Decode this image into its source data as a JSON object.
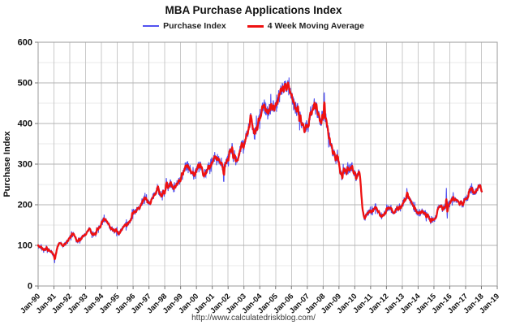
{
  "page": {
    "title": "MBA Purchase Applications Index",
    "footer_url": "http://www.calculatedriskblog.com/"
  },
  "legend": [
    {
      "label": "Purchase Index",
      "color": "#5252f0"
    },
    {
      "label": "4 Week Moving Average",
      "color": "#ee1111"
    }
  ],
  "chart_data": {
    "type": "line",
    "title": "MBA Purchase Applications Index",
    "xlabel": "",
    "ylabel": "Purchase Index",
    "xlim": [
      1990,
      2019
    ],
    "ylim": [
      0,
      600
    ],
    "y_major_ticks": [
      0,
      100,
      200,
      300,
      400,
      500,
      600
    ],
    "y_minor_step": 50,
    "grid": true,
    "legend_position": "top",
    "x_tick_labels": [
      "Jan-90",
      "Jan-91",
      "Jan-92",
      "Jan-93",
      "Jan-94",
      "Jan-95",
      "Jan-96",
      "Jan-97",
      "Jan-98",
      "Jan-99",
      "Jan-00",
      "Jan-01",
      "Jan-02",
      "Jan-03",
      "Jan-04",
      "Jan-05",
      "Jan-06",
      "Jan-07",
      "Jan-08",
      "Jan-09",
      "Jan-10",
      "Jan-11",
      "Jan-12",
      "Jan-13",
      "Jan-14",
      "Jan-15",
      "Jan-16",
      "Jan-17",
      "Jan-18",
      "Jan-19"
    ],
    "data_start": 1990.0,
    "data_end": 2018.02,
    "series": [
      {
        "name": "Purchase Index",
        "color": "#5252f0",
        "stroke_width": 1.1,
        "description": "weekly index = moving-average anchors + weekly noise + event spikes",
        "noise_base": 2.2,
        "noise_frac": 0.035,
        "spikes": [
          {
            "x": 1991.04,
            "delta": -14
          },
          {
            "x": 1995.95,
            "delta": 18
          },
          {
            "x": 1998.1,
            "delta": 28
          },
          {
            "x": 2001.72,
            "delta": -52
          },
          {
            "x": 2003.42,
            "delta": 26
          },
          {
            "x": 2008.08,
            "delta": 42
          },
          {
            "x": 2010.3,
            "delta": 26
          },
          {
            "x": 2013.3,
            "delta": 26
          },
          {
            "x": 2015.78,
            "delta": 60
          },
          {
            "x": 2015.84,
            "delta": -28
          }
        ]
      },
      {
        "name": "4 Week Moving Average",
        "color": "#ee1111",
        "stroke_width": 2.3,
        "anchors": {
          "x": [
            1990.0,
            1990.15,
            1990.3,
            1990.45,
            1990.6,
            1990.75,
            1990.9,
            1991.02,
            1991.1,
            1991.2,
            1991.3,
            1991.42,
            1991.55,
            1991.7,
            1991.85,
            1992.0,
            1992.1,
            1992.2,
            1992.35,
            1992.5,
            1992.65,
            1992.8,
            1992.95,
            1993.1,
            1993.25,
            1993.4,
            1993.55,
            1993.7,
            1993.85,
            1994.0,
            1994.12,
            1994.25,
            1994.4,
            1994.55,
            1994.7,
            1994.85,
            1995.0,
            1995.1,
            1995.25,
            1995.4,
            1995.55,
            1995.7,
            1995.85,
            1996.0,
            1996.15,
            1996.3,
            1996.45,
            1996.6,
            1996.72,
            1996.85,
            1997.0,
            1997.15,
            1997.3,
            1997.45,
            1997.55,
            1997.7,
            1997.85,
            1998.0,
            1998.1,
            1998.2,
            1998.35,
            1998.5,
            1998.65,
            1998.8,
            1998.95,
            1999.1,
            1999.25,
            1999.4,
            1999.55,
            1999.7,
            1999.85,
            2000.0,
            2000.15,
            2000.3,
            2000.45,
            2000.6,
            2000.75,
            2000.9,
            2001.05,
            2001.2,
            2001.35,
            2001.5,
            2001.62,
            2001.72,
            2001.85,
            2002.0,
            2002.12,
            2002.25,
            2002.4,
            2002.55,
            2002.7,
            2002.85,
            2003.0,
            2003.15,
            2003.3,
            2003.42,
            2003.5,
            2003.62,
            2003.75,
            2003.9,
            2004.05,
            2004.2,
            2004.35,
            2004.5,
            2004.65,
            2004.8,
            2004.95,
            2005.1,
            2005.25,
            2005.4,
            2005.55,
            2005.65,
            2005.8,
            2005.95,
            2006.1,
            2006.25,
            2006.4,
            2006.55,
            2006.7,
            2006.85,
            2007.0,
            2007.15,
            2007.3,
            2007.42,
            2007.55,
            2007.7,
            2007.85,
            2008.0,
            2008.08,
            2008.2,
            2008.35,
            2008.5,
            2008.65,
            2008.8,
            2008.95,
            2009.1,
            2009.2,
            2009.35,
            2009.5,
            2009.65,
            2009.8,
            2009.9,
            2010.0,
            2010.1,
            2010.25,
            2010.33,
            2010.42,
            2010.52,
            2010.62,
            2010.72,
            2010.82,
            2010.95,
            2011.1,
            2011.25,
            2011.4,
            2011.55,
            2011.7,
            2011.85,
            2012.0,
            2012.15,
            2012.3,
            2012.45,
            2012.6,
            2012.75,
            2012.9,
            2013.05,
            2013.2,
            2013.35,
            2013.5,
            2013.65,
            2013.8,
            2013.95,
            2014.1,
            2014.25,
            2014.4,
            2014.55,
            2014.7,
            2014.85,
            2015.0,
            2015.1,
            2015.25,
            2015.4,
            2015.55,
            2015.7,
            2015.8,
            2015.9,
            2016.05,
            2016.2,
            2016.35,
            2016.5,
            2016.65,
            2016.8,
            2016.95,
            2017.1,
            2017.25,
            2017.4,
            2017.52,
            2017.65,
            2017.78,
            2017.88,
            2017.96,
            2018.02
          ],
          "y": [
            98,
            96,
            93,
            91,
            90,
            87,
            80,
            72,
            76,
            94,
            108,
            105,
            100,
            103,
            108,
            118,
            128,
            131,
            120,
            112,
            116,
            120,
            124,
            134,
            141,
            130,
            128,
            136,
            144,
            152,
            163,
            165,
            152,
            146,
            140,
            136,
            131,
            128,
            136,
            144,
            150,
            156,
            161,
            172,
            182,
            192,
            198,
            205,
            216,
            210,
            204,
            213,
            225,
            236,
            239,
            230,
            223,
            231,
            251,
            242,
            252,
            246,
            241,
            252,
            262,
            272,
            284,
            298,
            290,
            278,
            272,
            286,
            296,
            288,
            278,
            276,
            292,
            303,
            308,
            321,
            314,
            306,
            298,
            288,
            301,
            314,
            330,
            340,
            322,
            311,
            326,
            344,
            348,
            367,
            386,
            414,
            407,
            373,
            382,
            400,
            424,
            448,
            440,
            426,
            435,
            447,
            443,
            458,
            470,
            483,
            494,
            498,
            485,
            472,
            452,
            438,
            426,
            412,
            396,
            389,
            396,
            418,
            437,
            446,
            436,
            423,
            405,
            419,
            435,
            402,
            372,
            348,
            328,
            314,
            307,
            272,
            264,
            291,
            283,
            290,
            296,
            286,
            274,
            263,
            276,
            262,
            214,
            177,
            167,
            172,
            180,
            186,
            190,
            184,
            188,
            180,
            174,
            180,
            186,
            192,
            188,
            184,
            188,
            192,
            196,
            203,
            214,
            220,
            212,
            198,
            188,
            182,
            178,
            184,
            179,
            174,
            170,
            164,
            161,
            170,
            188,
            196,
            190,
            194,
            197,
            193,
            206,
            216,
            211,
            207,
            203,
            199,
            208,
            220,
            234,
            238,
            228,
            231,
            240,
            247,
            238,
            232
          ]
        }
      }
    ]
  }
}
